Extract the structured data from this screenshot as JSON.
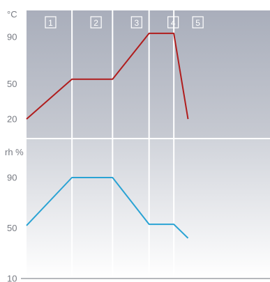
{
  "chart_data": [
    {
      "type": "line",
      "unit_label": "°C",
      "yticks": [
        20,
        50,
        90
      ],
      "ylim": [
        10,
        110
      ],
      "xlim": [
        0,
        6
      ],
      "segments": [
        "1",
        "2",
        "3",
        "4",
        "5"
      ],
      "segment_bounds": [
        0,
        1.12,
        2.12,
        3.02,
        3.63,
        6
      ],
      "grid": true,
      "series": [
        {
          "color": "#b01d1d",
          "x": [
            0,
            1.12,
            2.12,
            3.02,
            3.63,
            3.98
          ],
          "y": [
            20,
            54,
            54,
            93,
            93,
            20
          ]
        }
      ]
    },
    {
      "type": "line",
      "unit_label": "rh %",
      "yticks": [
        10,
        50,
        90
      ],
      "ylim": [
        10,
        112
      ],
      "xlim": [
        0,
        6
      ],
      "grid": true,
      "series": [
        {
          "color": "#2aa3d4",
          "x": [
            0,
            1.12,
            2.12,
            3.02,
            3.63,
            3.98
          ],
          "y": [
            52,
            90,
            90,
            53,
            53,
            42
          ]
        }
      ]
    }
  ]
}
